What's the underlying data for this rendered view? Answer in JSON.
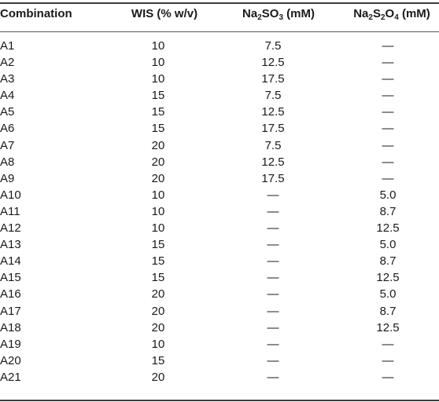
{
  "headers": {
    "combination": "Combination",
    "wis": "WIS (% w/v)",
    "sulfite_prefix": "Na",
    "sulfite_sub1": "2",
    "sulfite_mid": "SO",
    "sulfite_sub2": "3",
    "sulfite_suffix": " (mM)",
    "dithionite_prefix": "Na",
    "dithionite_sub1": "2",
    "dithionite_mid": "S",
    "dithionite_sub2": "2",
    "dithionite_mid2": "O",
    "dithionite_sub3": "4",
    "dithionite_suffix": " (mM)"
  },
  "rows": [
    {
      "combination": "A1",
      "wis": "10",
      "na2so3": "7.5",
      "na2s2o4": "—"
    },
    {
      "combination": "A2",
      "wis": "10",
      "na2so3": "12.5",
      "na2s2o4": "—"
    },
    {
      "combination": "A3",
      "wis": "10",
      "na2so3": "17.5",
      "na2s2o4": "—"
    },
    {
      "combination": "A4",
      "wis": "15",
      "na2so3": "7.5",
      "na2s2o4": "—"
    },
    {
      "combination": "A5",
      "wis": "15",
      "na2so3": "12.5",
      "na2s2o4": "—"
    },
    {
      "combination": "A6",
      "wis": "15",
      "na2so3": "17.5",
      "na2s2o4": "—"
    },
    {
      "combination": "A7",
      "wis": "20",
      "na2so3": "7.5",
      "na2s2o4": "—"
    },
    {
      "combination": "A8",
      "wis": "20",
      "na2so3": "12.5",
      "na2s2o4": "—"
    },
    {
      "combination": "A9",
      "wis": "20",
      "na2so3": "17.5",
      "na2s2o4": "—"
    },
    {
      "combination": "A10",
      "wis": "10",
      "na2so3": "—",
      "na2s2o4": "5.0"
    },
    {
      "combination": "A11",
      "wis": "10",
      "na2so3": "—",
      "na2s2o4": "8.7"
    },
    {
      "combination": "A12",
      "wis": "10",
      "na2so3": "—",
      "na2s2o4": "12.5"
    },
    {
      "combination": "A13",
      "wis": "15",
      "na2so3": "—",
      "na2s2o4": "5.0"
    },
    {
      "combination": "A14",
      "wis": "15",
      "na2so3": "—",
      "na2s2o4": "8.7"
    },
    {
      "combination": "A15",
      "wis": "15",
      "na2so3": "—",
      "na2s2o4": "12.5"
    },
    {
      "combination": "A16",
      "wis": "20",
      "na2so3": "—",
      "na2s2o4": "5.0"
    },
    {
      "combination": "A17",
      "wis": "20",
      "na2so3": "—",
      "na2s2o4": "8.7"
    },
    {
      "combination": "A18",
      "wis": "20",
      "na2so3": "—",
      "na2s2o4": "12.5"
    },
    {
      "combination": "A19",
      "wis": "10",
      "na2so3": "—",
      "na2s2o4": "—"
    },
    {
      "combination": "A20",
      "wis": "15",
      "na2so3": "—",
      "na2s2o4": "—"
    },
    {
      "combination": "A21",
      "wis": "20",
      "na2so3": "—",
      "na2s2o4": "—"
    }
  ]
}
